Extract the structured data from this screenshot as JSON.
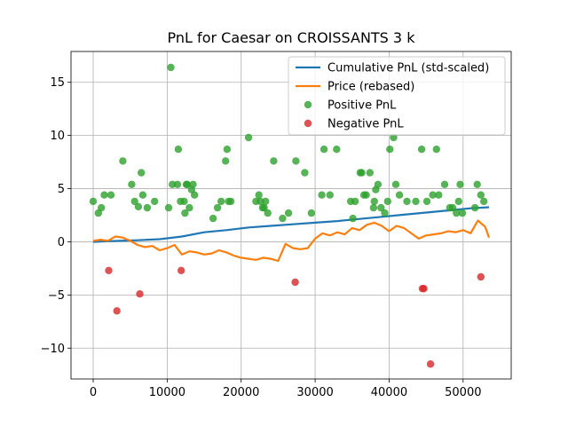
{
  "chart_data": {
    "type": "scatter",
    "title": "PnL for Caesar on CROISSANTS 3 k",
    "xlabel": "",
    "ylabel": "",
    "xlim": [
      -3000,
      56500
    ],
    "ylim": [
      -12.9,
      17.9
    ],
    "x_ticks": [
      0,
      10000,
      20000,
      30000,
      40000,
      50000
    ],
    "x_tick_labels": [
      "0",
      "10000",
      "20000",
      "30000",
      "40000",
      "50000"
    ],
    "y_ticks": [
      -10,
      -5,
      0,
      5,
      10,
      15
    ],
    "y_tick_labels": [
      "−10",
      "−5",
      "0",
      "5",
      "10",
      "15"
    ],
    "grid": true,
    "legend_position": "top-right",
    "series": [
      {
        "name": "Cumulative PnL (std-scaled)",
        "kind": "line",
        "color": "#1f77b4",
        "x": [
          0,
          3000,
          6000,
          9000,
          12000,
          15000,
          18000,
          21000,
          24000,
          27000,
          30000,
          33000,
          36000,
          39000,
          42000,
          45000,
          48000,
          51000,
          53500
        ],
        "y": [
          0.0,
          0.08,
          0.15,
          0.25,
          0.5,
          0.9,
          1.1,
          1.35,
          1.5,
          1.65,
          1.8,
          1.95,
          2.15,
          2.35,
          2.55,
          2.75,
          2.95,
          3.15,
          3.25
        ]
      },
      {
        "name": "Price (rebased)",
        "kind": "line",
        "color": "#ff7f0e",
        "x": [
          0,
          1000,
          2000,
          3000,
          4000,
          5000,
          6000,
          7000,
          8000,
          9000,
          10000,
          11000,
          12000,
          13000,
          14000,
          15000,
          16000,
          17000,
          18000,
          19000,
          20000,
          21000,
          22000,
          23000,
          24000,
          25000,
          26000,
          27000,
          28000,
          29000,
          30000,
          31000,
          32000,
          33000,
          34000,
          35000,
          36000,
          37000,
          38000,
          39000,
          40000,
          41000,
          42000,
          43000,
          44000,
          45000,
          46000,
          47000,
          48000,
          49000,
          50000,
          51000,
          52000,
          53000,
          53500
        ],
        "y": [
          0.1,
          0.2,
          0.1,
          0.5,
          0.4,
          0.1,
          -0.3,
          -0.5,
          -0.4,
          -0.8,
          -0.6,
          -0.3,
          -1.2,
          -0.9,
          -1.0,
          -1.2,
          -1.1,
          -0.8,
          -1.0,
          -1.3,
          -1.5,
          -1.6,
          -1.7,
          -1.5,
          -1.6,
          -1.8,
          -0.2,
          -0.6,
          -0.7,
          -0.6,
          0.3,
          0.8,
          0.6,
          0.9,
          0.7,
          1.3,
          1.1,
          1.6,
          1.8,
          1.5,
          1.0,
          1.5,
          1.3,
          0.8,
          0.3,
          0.6,
          0.7,
          0.8,
          1.0,
          0.9,
          1.1,
          0.8,
          2.0,
          1.4,
          0.4
        ]
      },
      {
        "name": "Positive PnL",
        "kind": "scatter",
        "color": "#2ca02c",
        "x": [
          0,
          700,
          1100,
          1500,
          2400,
          4000,
          5200,
          5600,
          6100,
          6500,
          6700,
          7300,
          8300,
          10200,
          10500,
          10700,
          11400,
          11500,
          11800,
          12300,
          12400,
          12600,
          12700,
          13000,
          13300,
          13500,
          13700,
          16200,
          16800,
          17300,
          17900,
          18100,
          18300,
          18600,
          21000,
          22000,
          22400,
          22600,
          22900,
          23100,
          23300,
          23600,
          24400,
          25600,
          26400,
          27400,
          28600,
          29500,
          30900,
          31200,
          32000,
          32900,
          34800,
          35100,
          35400,
          36100,
          36300,
          36600,
          36900,
          37400,
          37900,
          38000,
          38200,
          38500,
          38900,
          39400,
          39800,
          40100,
          40600,
          40900,
          41400,
          42400,
          43600,
          44400,
          45100,
          45900,
          46400,
          46700,
          47500,
          48200,
          48600,
          49100,
          49400,
          49600,
          49900,
          51600,
          51900,
          52400,
          52800
        ],
        "y": [
          3.8,
          2.7,
          3.2,
          4.4,
          4.4,
          7.6,
          5.4,
          3.8,
          3.3,
          6.5,
          4.4,
          3.2,
          3.8,
          3.2,
          16.4,
          5.4,
          5.4,
          8.7,
          3.8,
          3.8,
          2.7,
          5.4,
          5.4,
          3.2,
          4.9,
          5.4,
          4.4,
          2.2,
          3.2,
          3.8,
          7.6,
          8.7,
          3.8,
          3.8,
          9.8,
          3.8,
          4.4,
          3.8,
          3.2,
          3.2,
          3.8,
          2.7,
          7.6,
          2.2,
          2.7,
          7.6,
          6.5,
          2.7,
          4.4,
          8.7,
          4.4,
          8.7,
          3.8,
          2.2,
          3.8,
          6.5,
          6.5,
          4.4,
          4.4,
          6.5,
          3.2,
          3.8,
          4.9,
          5.4,
          3.2,
          2.7,
          3.8,
          8.7,
          9.8,
          5.4,
          4.4,
          3.8,
          3.8,
          8.7,
          3.8,
          4.4,
          8.7,
          4.4,
          5.4,
          3.2,
          3.2,
          2.7,
          3.8,
          5.4,
          2.7,
          3.2,
          5.4,
          4.4,
          3.8
        ]
      },
      {
        "name": "Negative PnL",
        "kind": "scatter",
        "color": "#d62728",
        "x": [
          2100,
          3200,
          6300,
          11900,
          27300,
          44500,
          44700,
          45600,
          52400
        ],
        "y": [
          -2.7,
          -6.5,
          -4.9,
          -2.7,
          -3.8,
          -4.4,
          -4.4,
          -11.5,
          -3.3
        ]
      }
    ]
  }
}
